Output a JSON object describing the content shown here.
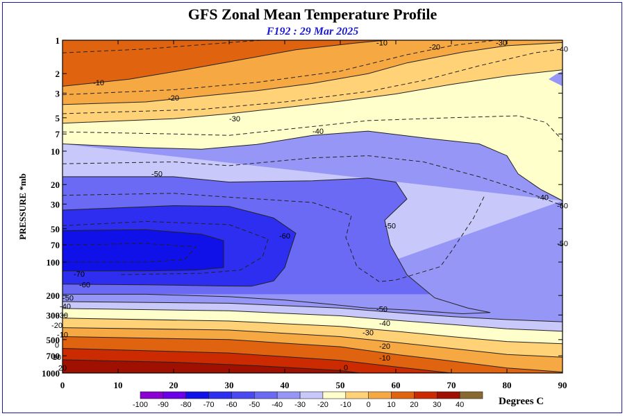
{
  "chart_data": {
    "type": "heatmap",
    "title": "GFS Zonal Mean Temperature Profile",
    "subtitle": "F192 : 29 Mar 2025",
    "xlabel": "",
    "ylabel": "PRESSURE *mb",
    "xlim": [
      0,
      90
    ],
    "ylim": [
      1000,
      1
    ],
    "y_scale": "log",
    "x_ticks": [
      0,
      10,
      20,
      30,
      40,
      50,
      60,
      70,
      80,
      90
    ],
    "y_ticks": [
      1,
      2,
      3,
      5,
      7,
      10,
      20,
      30,
      50,
      70,
      100,
      200,
      300,
      500,
      700,
      1000
    ],
    "y_tick_labels": [
      "1",
      "2",
      "3",
      "5",
      "7",
      "10",
      "20",
      "30",
      "50",
      "70",
      "100",
      "200",
      "300",
      "500",
      "700",
      "1000"
    ],
    "colorbar": {
      "units": "Degrees C",
      "levels": [
        -100,
        -90,
        -80,
        -70,
        -60,
        -50,
        -40,
        -30,
        -20,
        -10,
        0,
        10,
        20,
        30,
        40
      ],
      "colors": [
        "#8a00d2",
        "#6a00e8",
        "#1010e8",
        "#2e2ef0",
        "#4a4af0",
        "#6a6af4",
        "#9696f6",
        "#c8c8fa",
        "#ffffcc",
        "#ffd278",
        "#f6a842",
        "#e06410",
        "#cc2a00",
        "#a01000",
        "#886a30"
      ]
    },
    "band_colors": {
      "gt0": "#e06410",
      "m10_0": "#f6a842",
      "m20_m10": "#ffd278",
      "m30_m20": "#ffffcc",
      "m40_m30": "#c8c8fa",
      "m50_m40": "#9696f6",
      "m60_m50": "#6a6af4",
      "m70_m60": "#2e2ef0",
      "lt_m70": "#1010e8",
      "r0_10": "#e06410",
      "r10_20": "#cc2a00",
      "r20_30": "#a01000"
    },
    "contour_labels": [
      {
        "text": "-10",
        "x": 6.5,
        "p": 2.4
      },
      {
        "text": "-10",
        "x": 57.5,
        "p": 1.05
      },
      {
        "text": "-20",
        "x": 20,
        "p": 3.3
      },
      {
        "text": "-20",
        "x": 67,
        "p": 1.15
      },
      {
        "text": "-30",
        "x": 31,
        "p": 5.1
      },
      {
        "text": "-30",
        "x": 79,
        "p": 1.05
      },
      {
        "text": "-40",
        "x": 46,
        "p": 6.6
      },
      {
        "text": "-40",
        "x": 90,
        "p": 1.2
      },
      {
        "text": "-40",
        "x": 86.5,
        "p": 26
      },
      {
        "text": "-50",
        "x": 17,
        "p": 16
      },
      {
        "text": "-50",
        "x": 59,
        "p": 47
      },
      {
        "text": "-50",
        "x": 90,
        "p": 68
      },
      {
        "text": "-50",
        "x": 57.5,
        "p": 265
      },
      {
        "text": "-60",
        "x": 40,
        "p": 58
      },
      {
        "text": "-60",
        "x": 90,
        "p": 31
      },
      {
        "text": "-60",
        "x": 4,
        "p": 160
      },
      {
        "text": "-70",
        "x": 3,
        "p": 128
      },
      {
        "text": "-50",
        "x": 1,
        "p": 210
      },
      {
        "text": "-40",
        "x": 0.5,
        "p": 250
      },
      {
        "text": "-40",
        "x": 58,
        "p": 355
      },
      {
        "text": "-30",
        "x": 0,
        "p": 300
      },
      {
        "text": "-30",
        "x": 55,
        "p": 430
      },
      {
        "text": "-20",
        "x": -1,
        "p": 370
      },
      {
        "text": "-20",
        "x": 58,
        "p": 570
      },
      {
        "text": "-10",
        "x": 0,
        "p": 450
      },
      {
        "text": "-10",
        "x": 58,
        "p": 730
      },
      {
        "text": "0",
        "x": -1,
        "p": 560
      },
      {
        "text": "0",
        "x": 51,
        "p": 890
      },
      {
        "text": "10",
        "x": -1,
        "p": 720
      },
      {
        "text": "20",
        "x": 0,
        "p": 900
      }
    ]
  }
}
